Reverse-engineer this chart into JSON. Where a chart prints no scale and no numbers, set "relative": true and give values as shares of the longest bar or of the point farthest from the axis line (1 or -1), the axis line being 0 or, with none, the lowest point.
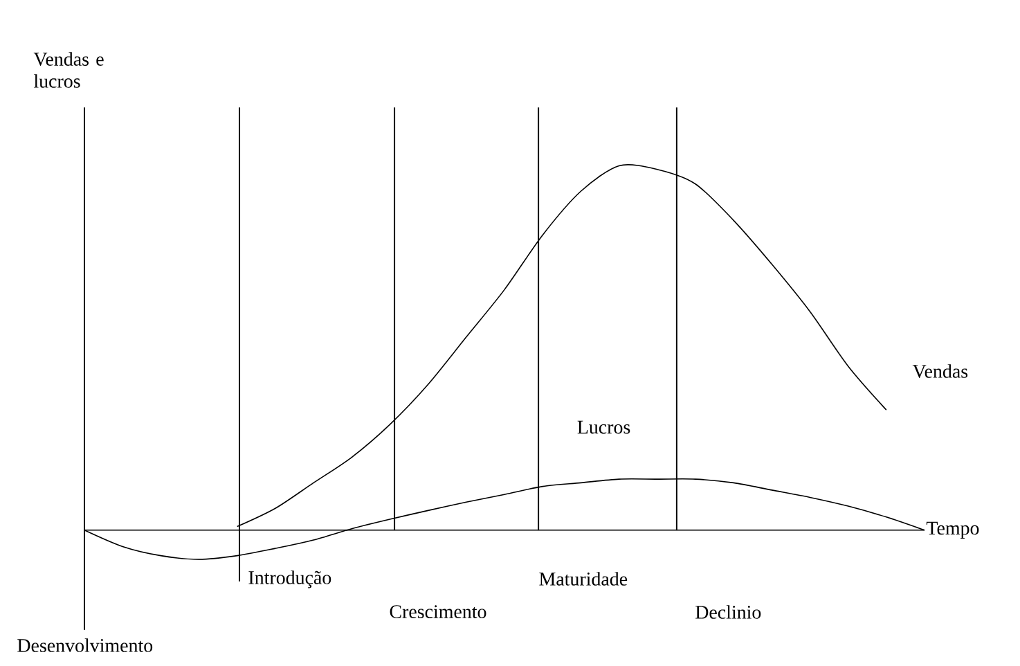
{
  "chart_data": {
    "type": "line",
    "relative": true,
    "xlabel": "Tempo",
    "ylabel": "Vendas e lucros",
    "categories": [
      null,
      null,
      null,
      null,
      null,
      null,
      null,
      null,
      null,
      null,
      null,
      null,
      null,
      null,
      null,
      null,
      null,
      null,
      null,
      null,
      null,
      null,
      null
    ],
    "series": [
      {
        "name": "Vendas",
        "color": "#000000",
        "values": [
          null,
          null,
          null,
          null,
          0.01,
          0.06,
          0.13,
          0.2,
          0.29,
          0.4,
          0.53,
          0.66,
          0.81,
          0.93,
          1.0,
          0.99,
          0.95,
          0.85,
          0.73,
          0.6,
          0.45,
          0.33,
          null
        ]
      },
      {
        "name": "Lucros",
        "color": "#000000",
        "values": [
          0,
          -0.045,
          -0.07,
          -0.08,
          -0.07,
          -0.05,
          -0.027,
          0.004,
          0.03,
          0.054,
          0.077,
          0.098,
          0.12,
          0.13,
          0.14,
          0.14,
          0.14,
          0.13,
          0.11,
          0.09,
          0.066,
          0.036,
          0
        ]
      }
    ],
    "annotations": [
      "Desenvolvimento",
      "Introdução",
      "Crescimento",
      "Maturidade",
      "Declinio"
    ]
  }
}
